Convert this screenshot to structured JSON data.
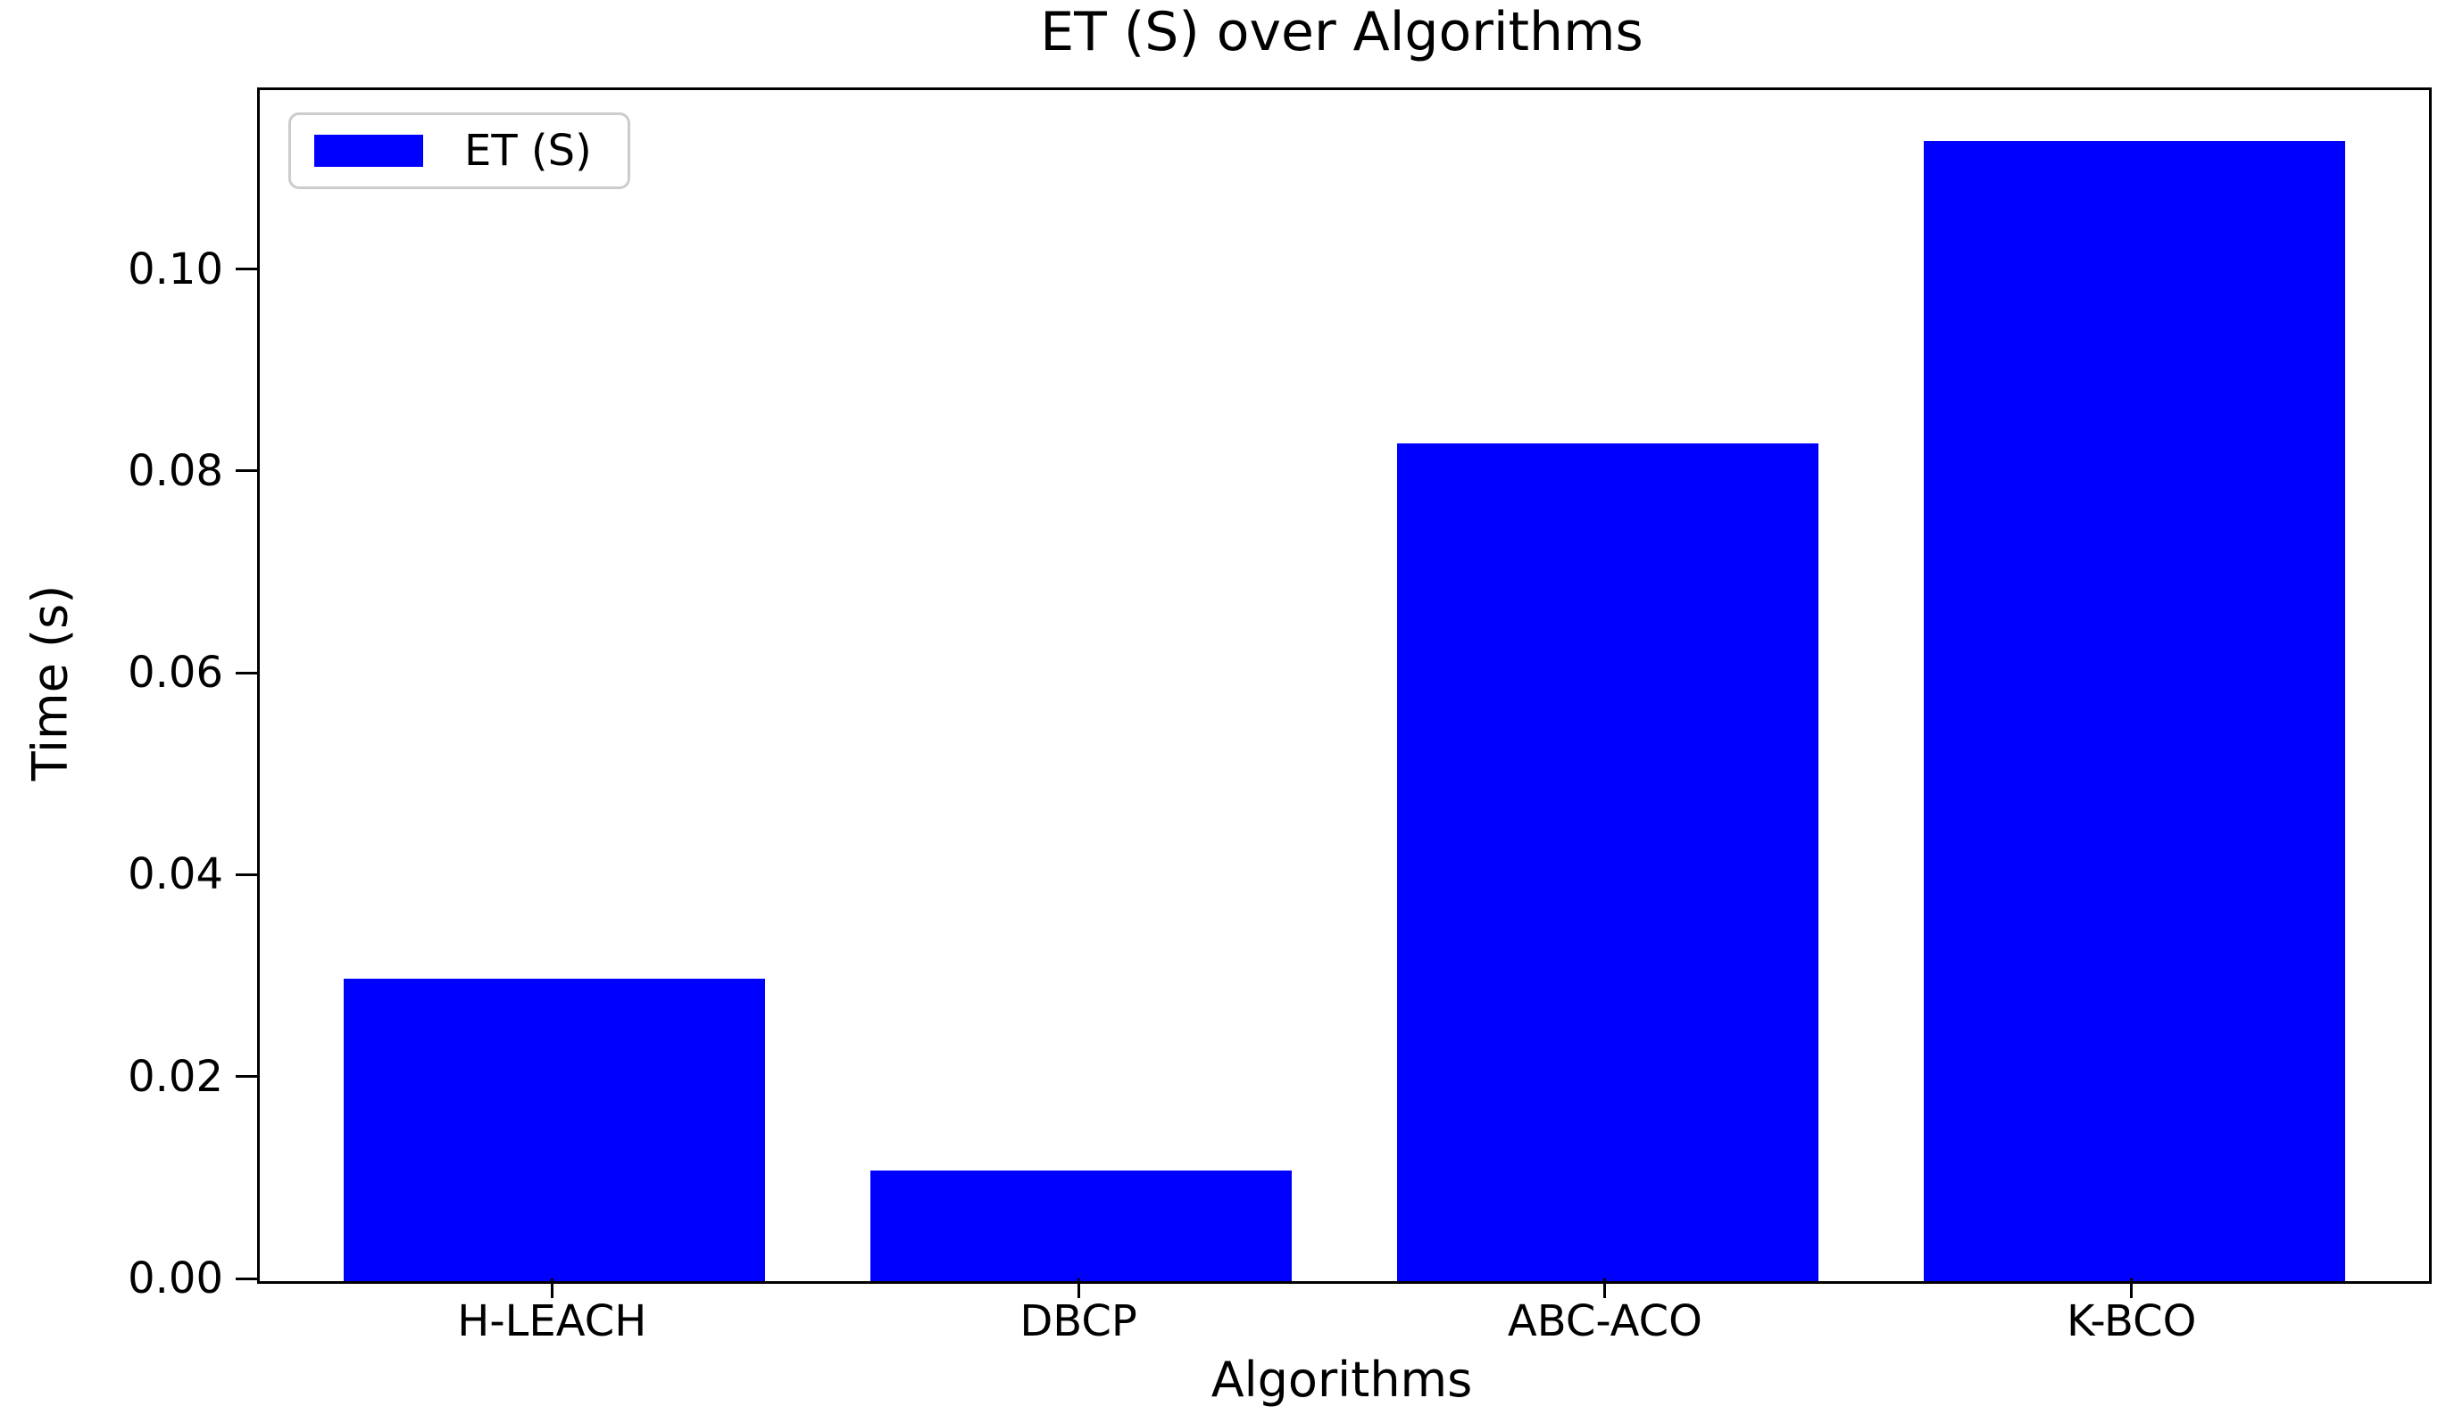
{
  "chart_data": {
    "type": "bar",
    "title": "ET (S) over Algorithms",
    "xlabel": "Algorithms",
    "ylabel": "Time (s)",
    "categories": [
      "H-LEACH",
      "DBCP",
      "ABC-ACO",
      "K-BCO"
    ],
    "series": [
      {
        "name": "ET (S)",
        "color": "#0000ff",
        "values": [
          0.03,
          0.011,
          0.083,
          0.113
        ]
      }
    ],
    "ytick_values": [
      0.0,
      0.02,
      0.04,
      0.06,
      0.08,
      0.1
    ],
    "ytick_labels": [
      "0.00",
      "0.02",
      "0.04",
      "0.06",
      "0.08",
      "0.10"
    ],
    "ylim": [
      0,
      0.118
    ],
    "xlim": [
      -0.56,
      3.56
    ],
    "bar_width": 0.8,
    "grid": false,
    "background": "#ffffff",
    "spine_color": "#000000",
    "legend": {
      "position": "upper-left",
      "entries": [
        {
          "label": "ET (S)",
          "color": "#0000ff"
        }
      ]
    }
  }
}
